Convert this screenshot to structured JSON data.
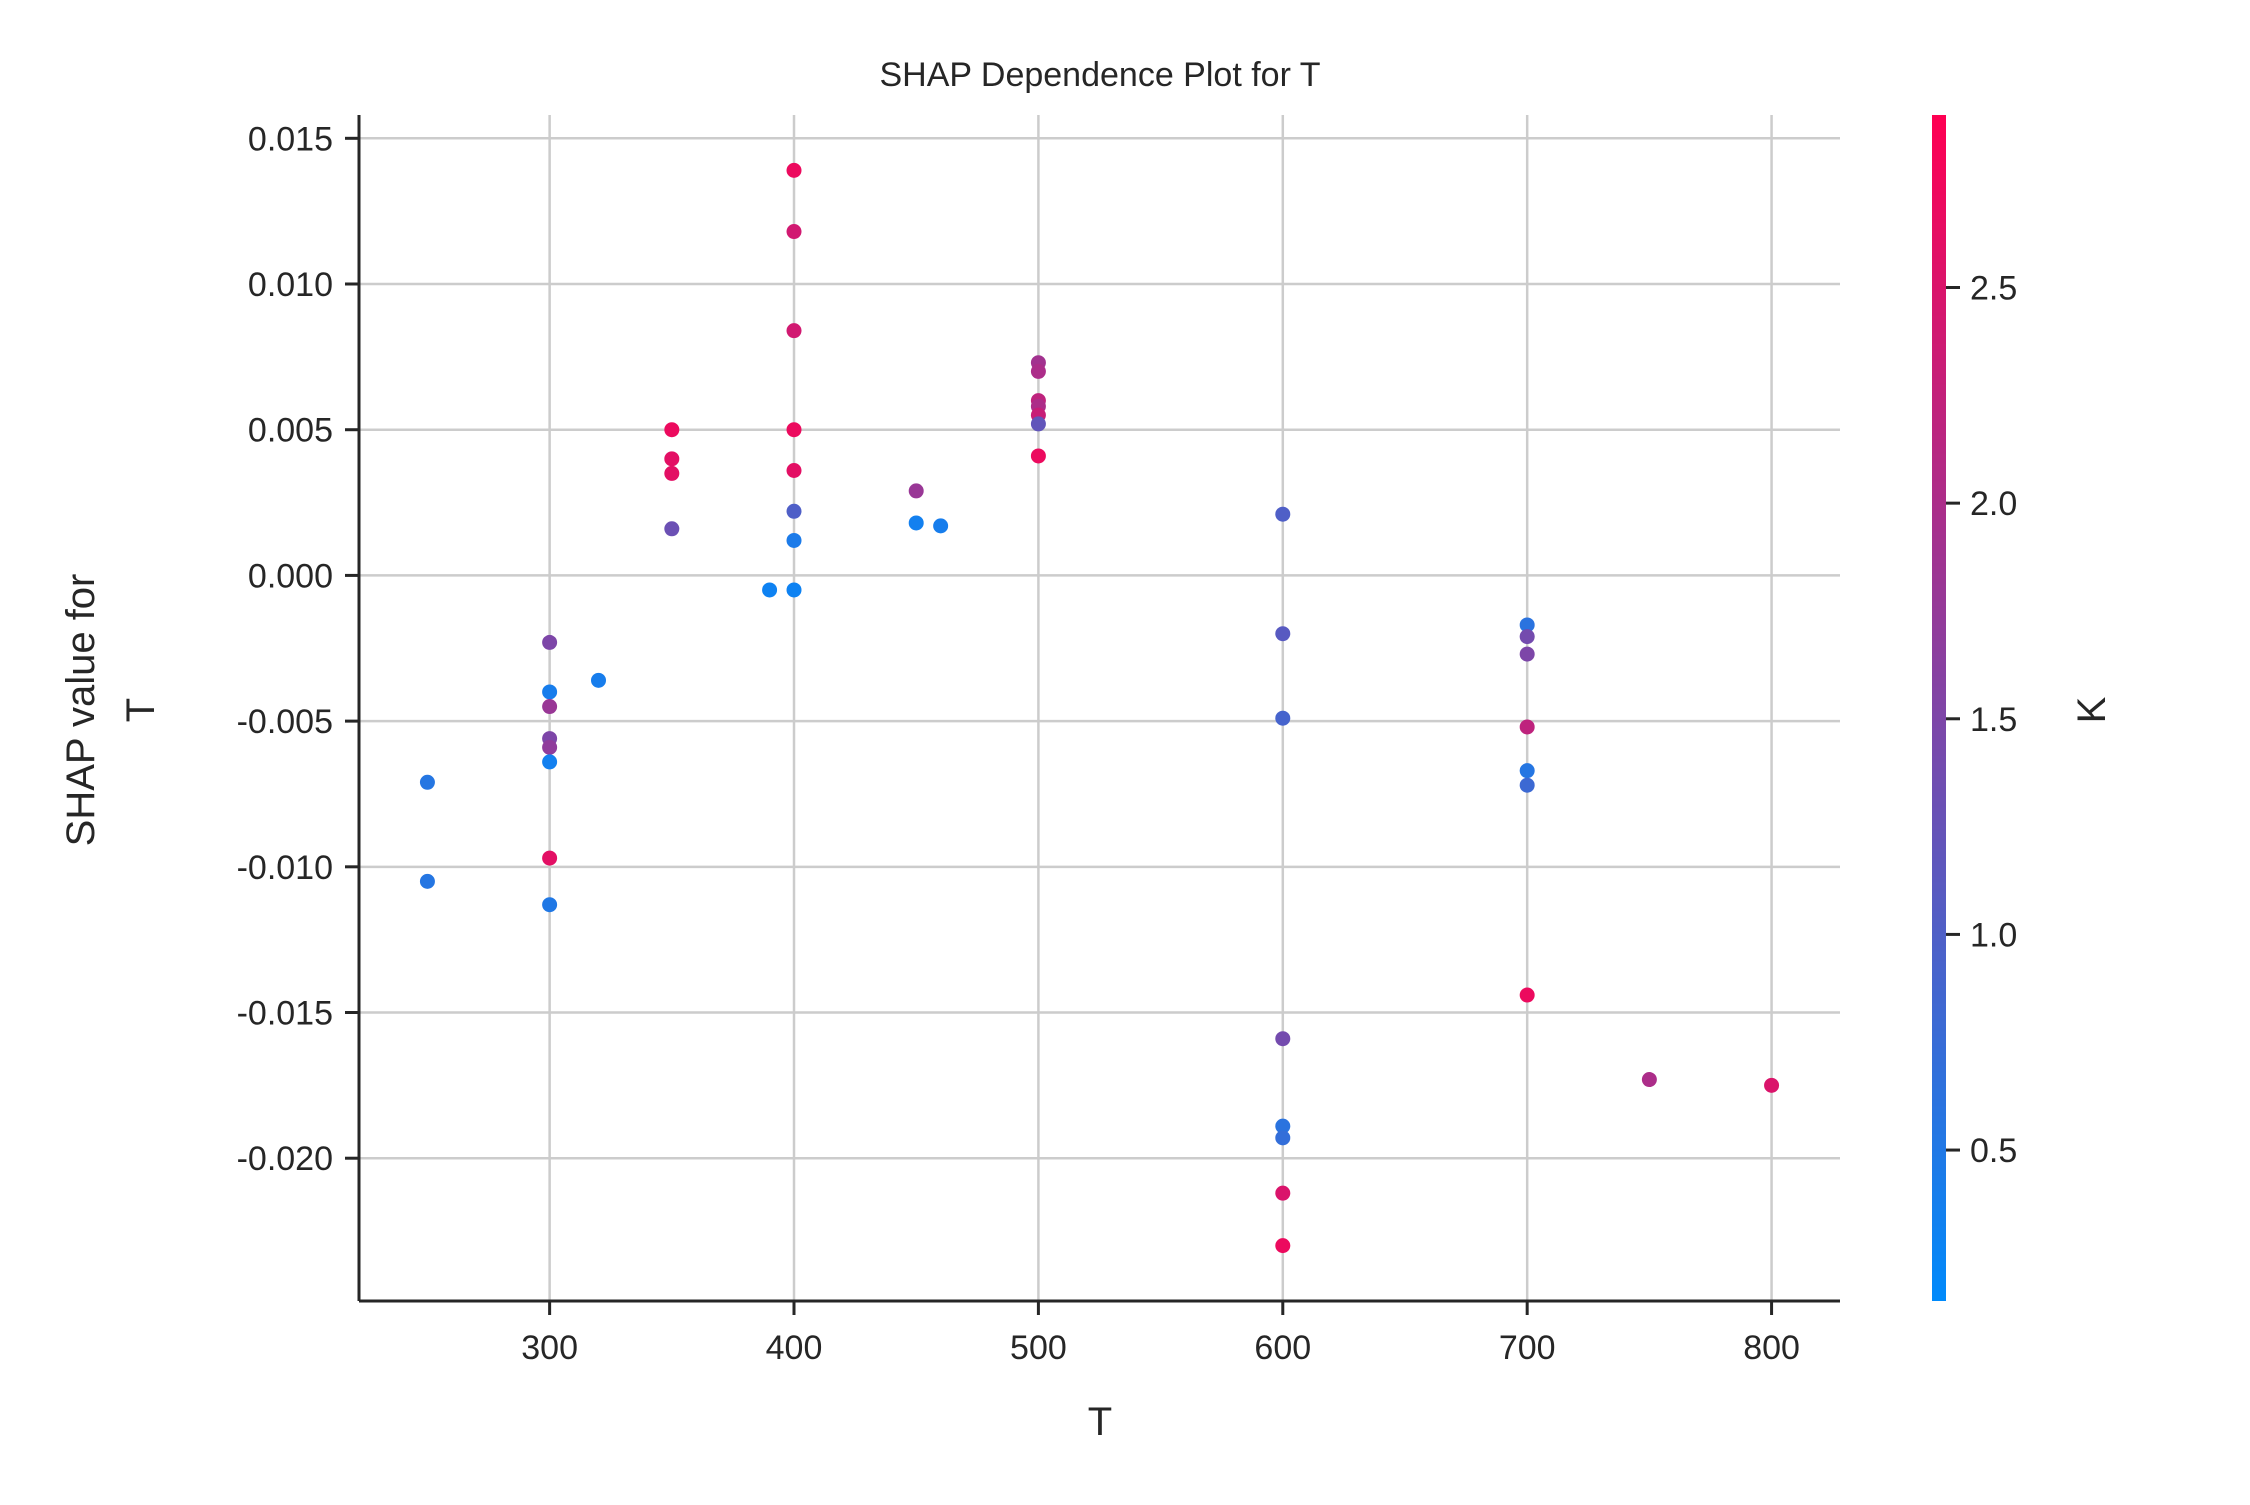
{
  "chart_data": {
    "type": "scatter",
    "title": "SHAP Dependence Plot for T",
    "xlabel": "T",
    "ylabel_lines": [
      "SHAP value for",
      "T"
    ],
    "xlim": [
      222,
      828
    ],
    "ylim": [
      -0.0249,
      0.0158
    ],
    "xticks": [
      300,
      400,
      500,
      600,
      700,
      800
    ],
    "xtick_labels": [
      "300",
      "400",
      "500",
      "600",
      "700",
      "800"
    ],
    "yticks": [
      0.015,
      0.01,
      0.005,
      0.0,
      -0.005,
      -0.01,
      -0.015,
      -0.02
    ],
    "ytick_labels": [
      "0.015",
      "0.010",
      "0.005",
      "0.000",
      "-0.005",
      "-0.010",
      "-0.015",
      "-0.020"
    ],
    "grid": true,
    "colorbar": {
      "label": "K",
      "min": 0.15,
      "max": 2.9,
      "ticks": [
        0.5,
        1.0,
        1.5,
        2.0,
        2.5
      ],
      "tick_labels": [
        "0.5",
        "1.0",
        "1.5",
        "2.0",
        "2.5"
      ],
      "colors": [
        "#008afb",
        "#ff0052"
      ]
    },
    "points": [
      {
        "x": 250,
        "y": -0.0071,
        "k": 0.55
      },
      {
        "x": 250,
        "y": -0.0105,
        "k": 0.55
      },
      {
        "x": 300,
        "y": -0.0023,
        "k": 1.5
      },
      {
        "x": 300,
        "y": -0.004,
        "k": 0.4
      },
      {
        "x": 300,
        "y": -0.0045,
        "k": 1.8
      },
      {
        "x": 300,
        "y": -0.0056,
        "k": 1.5
      },
      {
        "x": 300,
        "y": -0.0059,
        "k": 1.7
      },
      {
        "x": 300,
        "y": -0.0064,
        "k": 0.35
      },
      {
        "x": 300,
        "y": -0.0097,
        "k": 2.6
      },
      {
        "x": 300,
        "y": -0.0113,
        "k": 0.5
      },
      {
        "x": 320,
        "y": -0.0036,
        "k": 0.4
      },
      {
        "x": 350,
        "y": 0.005,
        "k": 2.7
      },
      {
        "x": 350,
        "y": 0.004,
        "k": 2.6
      },
      {
        "x": 350,
        "y": 0.0035,
        "k": 2.6
      },
      {
        "x": 350,
        "y": 0.0016,
        "k": 1.3
      },
      {
        "x": 390,
        "y": -0.0005,
        "k": 0.3
      },
      {
        "x": 400,
        "y": 0.0139,
        "k": 2.7
      },
      {
        "x": 400,
        "y": 0.0118,
        "k": 2.4
      },
      {
        "x": 400,
        "y": 0.0084,
        "k": 2.4
      },
      {
        "x": 400,
        "y": 0.005,
        "k": 2.7
      },
      {
        "x": 400,
        "y": 0.0036,
        "k": 2.6
      },
      {
        "x": 400,
        "y": 0.0022,
        "k": 1.0
      },
      {
        "x": 400,
        "y": 0.0012,
        "k": 0.45
      },
      {
        "x": 400,
        "y": -0.0005,
        "k": 0.3
      },
      {
        "x": 450,
        "y": 0.0029,
        "k": 1.8
      },
      {
        "x": 450,
        "y": 0.0018,
        "k": 0.35
      },
      {
        "x": 460,
        "y": 0.0017,
        "k": 0.4
      },
      {
        "x": 500,
        "y": 0.0073,
        "k": 1.9
      },
      {
        "x": 500,
        "y": 0.007,
        "k": 2.0
      },
      {
        "x": 500,
        "y": 0.006,
        "k": 2.2
      },
      {
        "x": 500,
        "y": 0.0058,
        "k": 2.0
      },
      {
        "x": 500,
        "y": 0.0055,
        "k": 2.3
      },
      {
        "x": 500,
        "y": 0.0052,
        "k": 1.2
      },
      {
        "x": 500,
        "y": 0.0041,
        "k": 2.7
      },
      {
        "x": 600,
        "y": 0.0021,
        "k": 1.0
      },
      {
        "x": 600,
        "y": -0.002,
        "k": 1.1
      },
      {
        "x": 600,
        "y": -0.0049,
        "k": 0.9
      },
      {
        "x": 600,
        "y": -0.0159,
        "k": 1.4
      },
      {
        "x": 600,
        "y": -0.0189,
        "k": 0.6
      },
      {
        "x": 600,
        "y": -0.0193,
        "k": 0.7
      },
      {
        "x": 600,
        "y": -0.0212,
        "k": 2.5
      },
      {
        "x": 600,
        "y": -0.023,
        "k": 2.7
      },
      {
        "x": 700,
        "y": -0.0017,
        "k": 0.6
      },
      {
        "x": 700,
        "y": -0.0021,
        "k": 1.4
      },
      {
        "x": 700,
        "y": -0.0027,
        "k": 1.5
      },
      {
        "x": 700,
        "y": -0.0052,
        "k": 2.2
      },
      {
        "x": 700,
        "y": -0.0067,
        "k": 0.55
      },
      {
        "x": 700,
        "y": -0.0072,
        "k": 0.8
      },
      {
        "x": 700,
        "y": -0.0144,
        "k": 2.7
      },
      {
        "x": 750,
        "y": -0.0173,
        "k": 2.0
      },
      {
        "x": 800,
        "y": -0.0175,
        "k": 2.5
      }
    ]
  }
}
